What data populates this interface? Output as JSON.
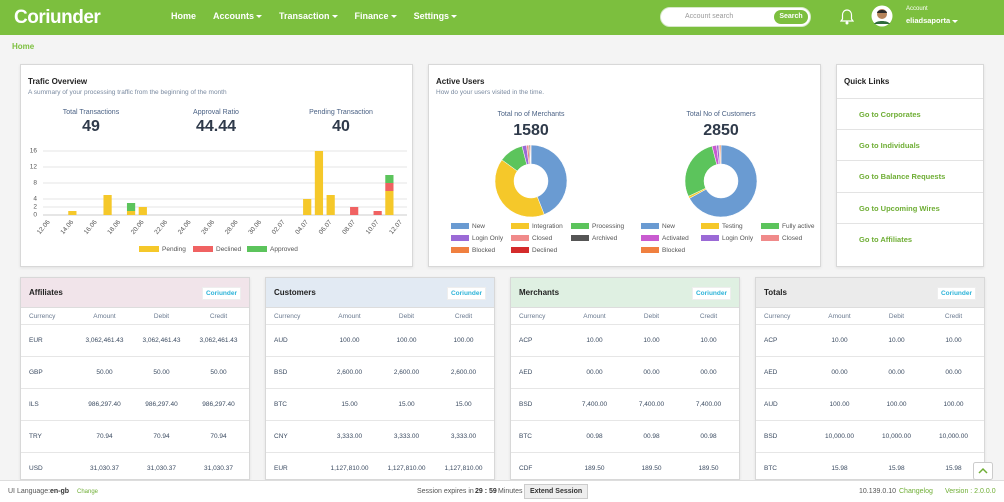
{
  "header": {
    "logo": "Coriunder",
    "nav": [
      "Home",
      "Accounts",
      "Transaction",
      "Finance",
      "Settings"
    ],
    "search_placeholder": "Account search",
    "search_button": "Search",
    "account_label": "Account",
    "user": "eliadsaporta"
  },
  "breadcrumb": "Home",
  "traffic": {
    "title": "Trafic Overview",
    "subtitle": "A summary of your processing traffic from the beginning of the month",
    "stats": [
      {
        "label": "Total Transactions",
        "value": 49
      },
      {
        "label": "Approval Ratio",
        "value": 44.44
      },
      {
        "label": "Pending Transaction",
        "value": 40
      }
    ]
  },
  "active_users": {
    "title": "Active Users",
    "subtitle": "How do your users visited in the time."
  },
  "chart_data": [
    {
      "type": "stacked_bar",
      "categories": [
        "12.06",
        null,
        "14.06",
        null,
        "16.06",
        null,
        "18.06",
        null,
        "20.06",
        null,
        "22.06",
        null,
        "24.06",
        null,
        "26.06",
        null,
        "28.06",
        null,
        "30.06",
        null,
        "02.07",
        null,
        "04.07",
        null,
        "06.07",
        null,
        "08.07",
        null,
        "10.07",
        null,
        "12.07"
      ],
      "series": [
        {
          "name": "Pending",
          "color": "#f5c82a",
          "values": [
            0,
            0,
            1,
            0,
            0,
            5,
            0,
            1,
            2,
            0,
            0,
            0,
            0,
            0,
            0,
            0,
            0,
            0,
            0,
            0,
            0,
            0,
            4,
            16,
            5,
            0,
            0,
            0,
            0,
            6,
            0
          ]
        },
        {
          "name": "Declined",
          "color": "#f06262",
          "values": [
            0,
            0,
            0,
            0,
            0,
            0,
            0,
            0,
            0,
            0,
            0,
            0,
            0,
            0,
            0,
            0,
            0,
            0,
            0,
            0,
            0,
            0,
            0,
            0,
            0,
            0,
            2,
            0,
            1,
            2,
            0
          ]
        },
        {
          "name": "Approved",
          "color": "#5cc45c",
          "values": [
            0,
            0,
            0,
            0,
            0,
            0,
            0,
            2,
            0,
            0,
            0,
            0,
            0,
            0,
            0,
            0,
            0,
            0,
            0,
            0,
            0,
            0,
            0,
            0,
            0,
            0,
            0,
            0,
            0,
            2,
            0
          ]
        }
      ],
      "ylim": [
        0,
        16
      ],
      "yticks": [
        0,
        2,
        4,
        8,
        12,
        16
      ],
      "grid": true
    },
    {
      "type": "donut",
      "title": "Total no of Merchants",
      "total": 1580,
      "labels": [
        "New",
        "Integration",
        "Processing",
        "Login Only",
        "Closed",
        "Archived",
        "Blocked",
        "Declined"
      ],
      "values": [
        44,
        41,
        11,
        2,
        1,
        0.5,
        0.3,
        0.2
      ],
      "colors": [
        "#6a9bd2",
        "#f5c82a",
        "#5cc45c",
        "#9b6ad6",
        "#f08a8a",
        "#555555",
        "#f08040",
        "#d42b2b"
      ]
    },
    {
      "type": "donut",
      "title": "Total No of Customers",
      "total": 2850,
      "labels": [
        "New",
        "Testing",
        "Fully active",
        "Activated",
        "Login Only",
        "Closed",
        "Blocked"
      ],
      "values": [
        67,
        1,
        28,
        2,
        1,
        0.5,
        0.5
      ],
      "colors": [
        "#6a9bd2",
        "#f5c82a",
        "#5cc45c",
        "#c95bd0",
        "#9b6ad6",
        "#f08a8a",
        "#f08040"
      ]
    }
  ],
  "quick_links": {
    "title": "Quick Links",
    "items": [
      "Go to Corporates",
      "Go to Individuals",
      "Go to Balance Requests",
      "Go to Upcoming Wires",
      "Go to Affiliates"
    ]
  },
  "tables": [
    {
      "title": "Affiliates",
      "badge": "Coriunder",
      "columns": [
        "Currency",
        "Amount",
        "Debit",
        "Credit"
      ],
      "rows": [
        [
          "EUR",
          "3,062,461.43",
          "3,062,461.43",
          "3,062,461.43"
        ],
        [
          "GBP",
          "50.00",
          "50.00",
          "50.00"
        ],
        [
          "ILS",
          "986,297.40",
          "986,297.40",
          "986,297.40"
        ],
        [
          "TRY",
          "70.94",
          "70.94",
          "70.94"
        ],
        [
          "USD",
          "31,030.37",
          "31,030.37",
          "31,030.37"
        ]
      ]
    },
    {
      "title": "Customers",
      "badge": "Coriunder",
      "columns": [
        "Currency",
        "Amount",
        "Debit",
        "Credit"
      ],
      "rows": [
        [
          "AUD",
          "100.00",
          "100.00",
          "100.00"
        ],
        [
          "BSD",
          "2,600.00",
          "2,600.00",
          "2,600.00"
        ],
        [
          "BTC",
          "15.00",
          "15.00",
          "15.00"
        ],
        [
          "CNY",
          "3,333.00",
          "3,333.00",
          "3,333.00"
        ],
        [
          "EUR",
          "1,127,810.00",
          "1,127,810.00",
          "1,127,810.00"
        ]
      ]
    },
    {
      "title": "Merchants",
      "badge": "Coriunder",
      "columns": [
        "Currency",
        "Amount",
        "Debit",
        "Credit"
      ],
      "rows": [
        [
          "ACP",
          "10.00",
          "10.00",
          "10.00"
        ],
        [
          "AED",
          "00.00",
          "00.00",
          "00.00"
        ],
        [
          "BSD",
          "7,400.00",
          "7,400.00",
          "7,400.00"
        ],
        [
          "BTC",
          "00.98",
          "00.98",
          "00.98"
        ],
        [
          "CDF",
          "189.50",
          "189.50",
          "189.50"
        ]
      ]
    },
    {
      "title": "Totals",
      "badge": "Coriunder",
      "columns": [
        "Currency",
        "Amount",
        "Debit",
        "Credit"
      ],
      "rows": [
        [
          "ACP",
          "10.00",
          "10.00",
          "10.00"
        ],
        [
          "AED",
          "00.00",
          "00.00",
          "00.00"
        ],
        [
          "AUD",
          "100.00",
          "100.00",
          "100.00"
        ],
        [
          "BSD",
          "10,000.00",
          "10,000.00",
          "10,000.00"
        ],
        [
          "BTC",
          "15.98",
          "15.98",
          "15.98"
        ]
      ]
    }
  ],
  "footer": {
    "language_label": "UI Language:",
    "language": "en-gb",
    "change": "Change",
    "session_label": "Session expires in",
    "session_time": "29 : 59",
    "session_unit": "Minutes",
    "extend": "Extend Session",
    "ip": "10.139.0.10",
    "changelog": "Changelog",
    "version": "Version : 2.0.0.0"
  }
}
